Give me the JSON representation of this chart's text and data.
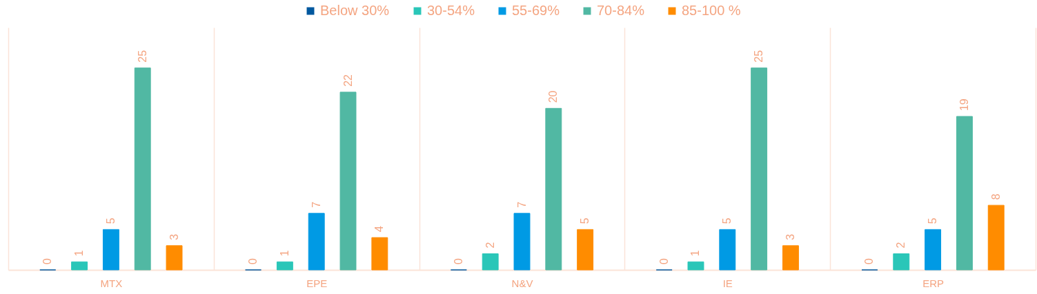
{
  "chart_data": {
    "type": "bar",
    "categories": [
      "MTX",
      "EPE",
      "N&V",
      "IE",
      "ERP"
    ],
    "series": [
      {
        "name": "Below 30%",
        "color": "#00589f",
        "values": [
          0,
          0,
          0,
          0,
          0
        ]
      },
      {
        "name": "30-54%",
        "color": "#2ac6b8",
        "values": [
          1,
          1,
          2,
          1,
          2
        ]
      },
      {
        "name": "55-69%",
        "color": "#009ae4",
        "values": [
          5,
          7,
          7,
          5,
          5
        ]
      },
      {
        "name": "70-84%",
        "color": "#51b8a3",
        "values": [
          25,
          22,
          20,
          25,
          19
        ]
      },
      {
        "name": "85-100 %",
        "color": "#ff8c00",
        "values": [
          3,
          4,
          5,
          3,
          8
        ]
      }
    ],
    "data_labels": true,
    "legend": "top",
    "grid": "x"
  }
}
